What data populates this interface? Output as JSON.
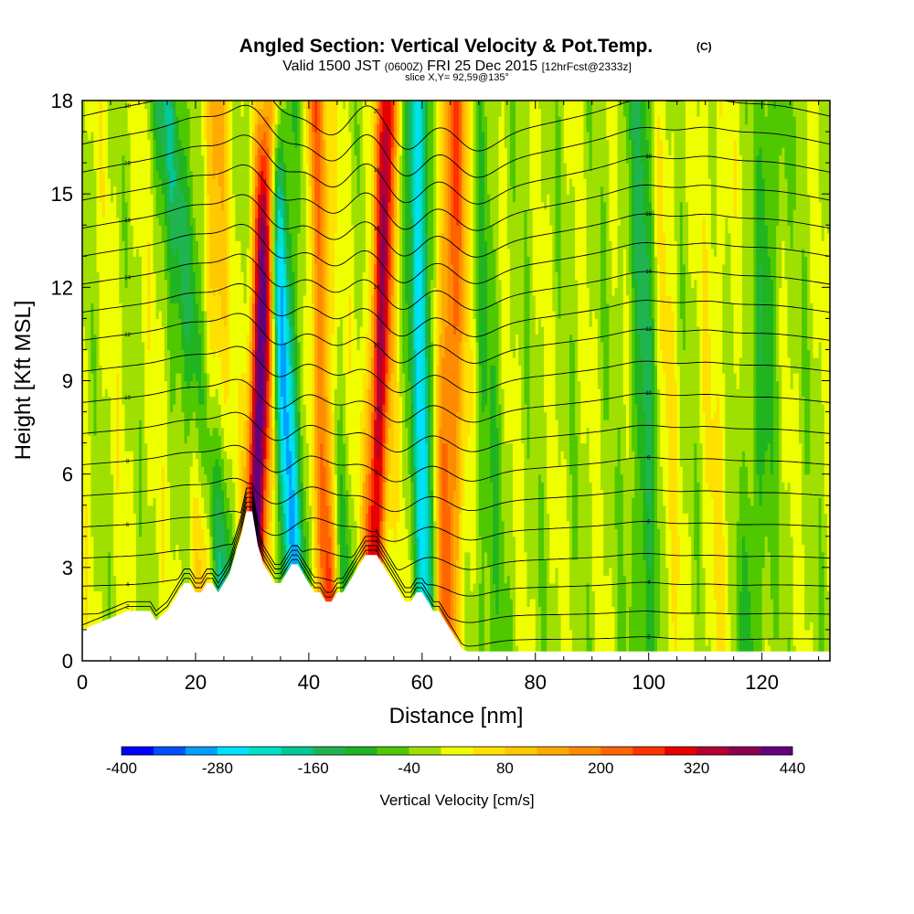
{
  "header": {
    "title": "Angled Section: Vertical Velocity & Pot.Temp.",
    "title_mark": "(C)",
    "valid_prefix": "Valid 1500 JST",
    "valid_utc": "(0600Z)",
    "valid_date": "FRI 25 Dec 2015",
    "forecast": "[12hrFcst@2333z]",
    "slice": "slice X,Y= 92,59@135°"
  },
  "chart_data": {
    "type": "heatmap",
    "xlabel": "Distance [nm]",
    "ylabel": "Height [Kft MSL]",
    "xlim": [
      0,
      132
    ],
    "ylim": [
      0,
      18
    ],
    "x_ticks": [
      0,
      20,
      40,
      60,
      80,
      100,
      120
    ],
    "y_ticks": [
      0,
      3,
      6,
      9,
      12,
      15,
      18
    ],
    "colorbar": {
      "label": "Vertical Velocity [cm/s]",
      "min": -400,
      "max": 440,
      "step": 40,
      "tick_labels": [
        "-400",
        "-280",
        "-160",
        "-40",
        "80",
        "200",
        "320",
        "440"
      ],
      "colors": [
        "#0000ff",
        "#0050ff",
        "#00a0ff",
        "#00e0ff",
        "#00e0c8",
        "#00c896",
        "#20b450",
        "#20b420",
        "#50c800",
        "#a0e000",
        "#f0ff00",
        "#ffe000",
        "#ffc800",
        "#ffaa00",
        "#ff8c00",
        "#ff6400",
        "#ff3200",
        "#e60000",
        "#b40032",
        "#8c0050",
        "#64007d"
      ]
    },
    "updraft_bands": [
      {
        "x_bottom": 30,
        "x_top": 33,
        "w": 460
      },
      {
        "x_bottom": 44,
        "x_top": 41,
        "w": 300
      },
      {
        "x_bottom": 51,
        "x_top": 54,
        "w": 340
      },
      {
        "x_bottom": 64,
        "x_top": 66,
        "w": 220
      },
      {
        "x_bottom": 21,
        "x_top": 24,
        "w": 110
      },
      {
        "x_bottom": 103,
        "x_top": 102,
        "w": 60
      },
      {
        "x_bottom": 112,
        "x_top": 112,
        "w": 40
      }
    ],
    "downdraft_bands": [
      {
        "x_bottom": 38,
        "x_top": 33,
        "w": -300
      },
      {
        "x_bottom": 61,
        "x_top": 59,
        "w": -260
      },
      {
        "x_bottom": 26,
        "x_top": 15,
        "w": -170
      },
      {
        "x_bottom": 47,
        "x_top": 38,
        "w": -120
      },
      {
        "x_bottom": 100,
        "x_top": 99,
        "w": -120
      },
      {
        "x_bottom": 72,
        "x_top": 70,
        "w": -60
      },
      {
        "x_bottom": 118,
        "x_top": 122,
        "w": -80
      }
    ],
    "terrain": {
      "x": [
        0,
        4,
        8,
        12,
        13,
        15,
        16,
        17,
        18,
        19,
        20,
        21,
        22,
        23,
        24,
        25,
        26,
        27,
        28,
        29,
        30,
        31,
        32,
        33,
        34,
        35,
        36,
        37,
        38,
        39,
        40,
        41,
        42,
        43,
        44,
        45,
        46,
        47,
        48,
        49,
        50,
        51,
        52,
        53,
        54,
        55,
        56,
        57,
        58,
        59,
        60,
        61,
        62,
        63,
        64,
        65,
        66,
        67,
        68,
        70,
        71,
        72,
        76,
        80,
        90,
        100,
        110,
        120,
        132
      ],
      "h": [
        1.0,
        1.3,
        1.6,
        1.6,
        1.3,
        1.6,
        1.9,
        2.2,
        2.5,
        2.5,
        2.2,
        2.2,
        2.5,
        2.5,
        2.2,
        2.5,
        2.8,
        3.4,
        4.0,
        4.8,
        4.8,
        3.7,
        3.1,
        2.8,
        2.5,
        2.5,
        2.8,
        3.1,
        3.1,
        2.8,
        2.5,
        2.2,
        2.2,
        1.9,
        1.9,
        2.2,
        2.2,
        2.5,
        2.8,
        3.1,
        3.4,
        3.4,
        3.4,
        3.1,
        2.8,
        2.5,
        2.2,
        1.9,
        1.9,
        2.2,
        2.2,
        1.9,
        1.6,
        1.6,
        1.3,
        1.0,
        0.7,
        0.4,
        0.3,
        0.3,
        0.3,
        0.3,
        0.3,
        0.3,
        0.3,
        0.3,
        0.3,
        0.3,
        0.3
      ]
    },
    "theta_isentropes": {
      "base_heights": [
        0.7,
        1.5,
        2.4,
        3.3,
        4.3,
        5.3,
        6.3,
        7.3,
        8.3,
        9.3,
        10.3,
        11.2,
        12.1,
        13.0,
        13.9,
        14.8,
        15.7,
        16.6,
        17.5
      ],
      "labels": {
        "0": "2",
        "2": "4",
        "4": "6",
        "6": "8",
        "8": "10",
        "10": "12",
        "12": "14",
        "14": "16",
        "16": "18",
        "18": "20"
      }
    }
  }
}
